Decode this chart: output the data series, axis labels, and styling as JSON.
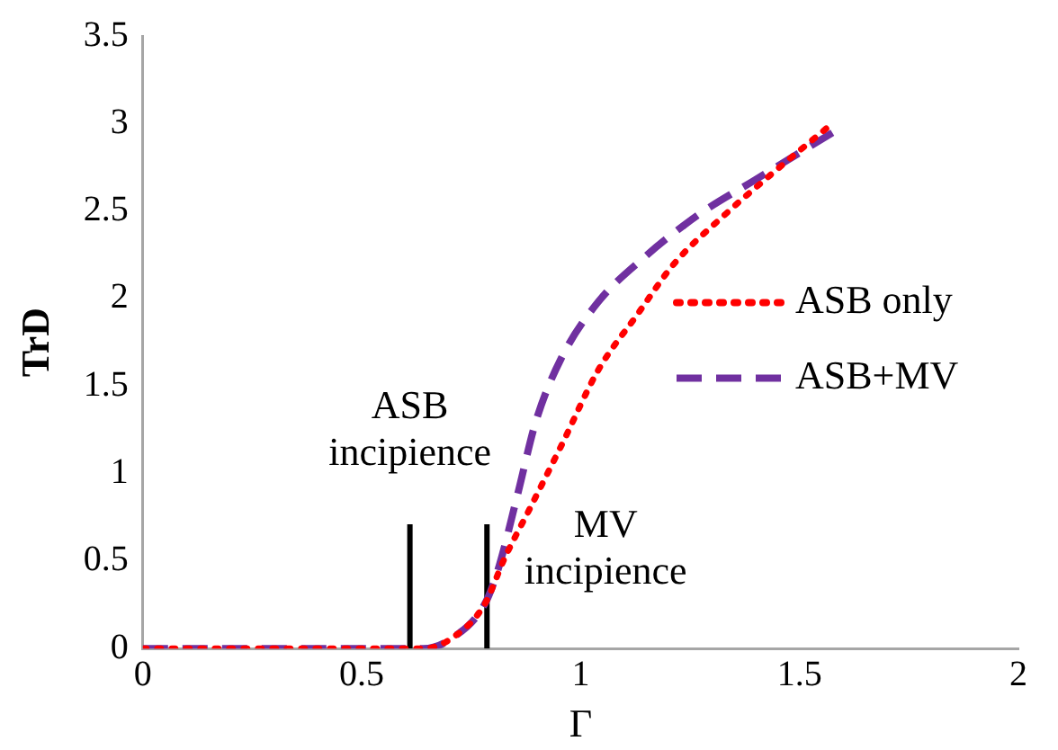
{
  "chart_data": {
    "type": "line",
    "xlabel": "Γ",
    "ylabel": "TrD",
    "xlim": [
      0,
      2
    ],
    "xticks": [
      0,
      0.5,
      1,
      1.5,
      2
    ],
    "ylim": [
      0,
      3.5
    ],
    "yticks": [
      0,
      0.5,
      1,
      1.5,
      2,
      2.5,
      3,
      3.5
    ],
    "grid": false,
    "legend": "right",
    "marker": "none",
    "series": [
      {
        "name": "ASB only",
        "color": "#ff0000",
        "line_style": "dotted",
        "x": [
          0,
          0.3,
          0.64,
          0.7,
          0.78,
          0.827,
          0.884,
          0.956,
          1.04,
          1.13,
          1.214,
          1.33,
          1.445,
          1.575
        ],
        "values": [
          0,
          0,
          0,
          0.05,
          0.25,
          0.52,
          0.8,
          1.16,
          1.59,
          1.91,
          2.2,
          2.48,
          2.73,
          3.0
        ]
      },
      {
        "name": "ASB+MV",
        "color": "#7030a0",
        "line_style": "dashed",
        "x": [
          0,
          0.3,
          0.64,
          0.7,
          0.78,
          0.81,
          0.855,
          0.898,
          0.956,
          1.04,
          1.143,
          1.27,
          1.4,
          1.59
        ],
        "values": [
          0,
          0,
          0,
          0.05,
          0.25,
          0.44,
          0.87,
          1.3,
          1.66,
          1.98,
          2.23,
          2.48,
          2.68,
          2.97
        ]
      },
      {
        "color": "#000000",
        "line_style": "solid",
        "x": [
          0.61,
          0.61
        ],
        "values": [
          0,
          0.71
        ]
      },
      {
        "color": "#000000",
        "line_style": "solid",
        "x": [
          0.786,
          0.786
        ],
        "values": [
          0,
          0.71
        ]
      }
    ],
    "annotations": [
      {
        "text": "ASB incipience",
        "x": 0.61,
        "y": 0.71
      },
      {
        "text": "MV incipience",
        "x": 0.786,
        "y": 0.71
      }
    ]
  }
}
